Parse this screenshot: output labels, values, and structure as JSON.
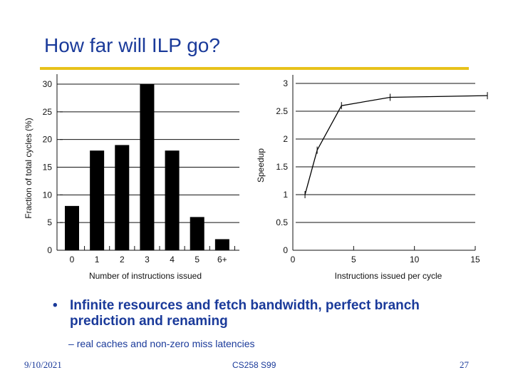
{
  "slide": {
    "title": "How far will ILP go?",
    "accent_color": "#e8c21a",
    "title_color": "#1a3a9a",
    "bullet": "Infinite resources and fetch bandwidth, perfect branch prediction and renaming",
    "sub_bullet": "real caches and non-zero miss latencies",
    "footer_date": "9/10/2021",
    "footer_course": "CS258 S99",
    "page_number": "27"
  },
  "chart_data": [
    {
      "type": "bar",
      "title": "",
      "xlabel": "Number of instructions issued",
      "ylabel": "Fraction of total cycles (%)",
      "categories": [
        "0",
        "1",
        "2",
        "3",
        "4",
        "5",
        "6+"
      ],
      "values": [
        8,
        18,
        19,
        30,
        18,
        6,
        2
      ],
      "ylim": [
        0,
        30
      ],
      "yticks": [
        "0",
        "5",
        "10",
        "15",
        "20",
        "25",
        "30"
      ],
      "grid": true
    },
    {
      "type": "line",
      "title": "",
      "xlabel": "Instructions issued per cycle",
      "ylabel": "Speedup",
      "x": [
        1,
        2,
        4,
        8,
        16
      ],
      "y": [
        1.0,
        1.8,
        2.6,
        2.75,
        2.78
      ],
      "xlim": [
        0,
        15
      ],
      "ylim": [
        0,
        3
      ],
      "xticks": [
        "0",
        "5",
        "10",
        "15"
      ],
      "yticks": [
        "0",
        "0.5",
        "1",
        "1.5",
        "2",
        "2.5",
        "3"
      ],
      "grid": true
    }
  ]
}
